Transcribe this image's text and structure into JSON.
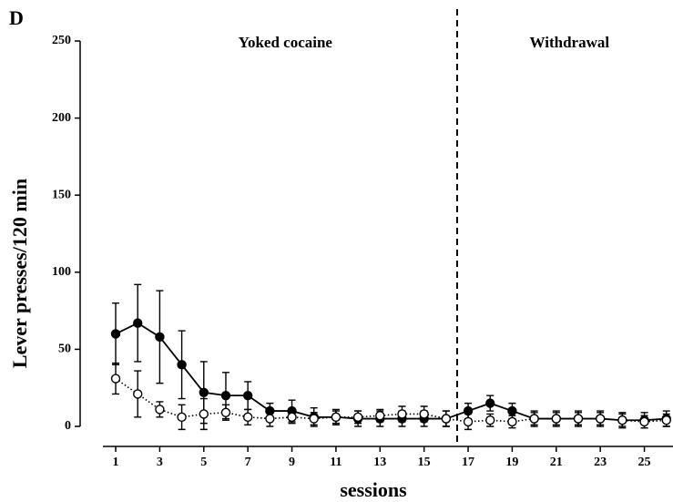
{
  "chart_data": {
    "type": "line",
    "panel": "D",
    "xlabel": "sessions",
    "ylabel": "Lever presses/120 min",
    "annotations": [
      {
        "text": "Yoked cocaine",
        "x": 8.7
      },
      {
        "text": "Withdrawal",
        "x": 21.6
      }
    ],
    "divider_x": 16.5,
    "x": [
      1,
      2,
      3,
      4,
      5,
      6,
      7,
      8,
      9,
      10,
      11,
      12,
      13,
      14,
      15,
      16,
      17,
      18,
      19,
      20,
      21,
      22,
      23,
      24,
      25,
      26
    ],
    "series": [
      {
        "color": "#000000",
        "marker": "filled",
        "line": "solid",
        "values": [
          60,
          67,
          58,
          40,
          22,
          20,
          20,
          10,
          10,
          6,
          6,
          5,
          5,
          5,
          5,
          5,
          10,
          15,
          10,
          5,
          5,
          5,
          5,
          4,
          4,
          5
        ],
        "errors": [
          20,
          25,
          30,
          22,
          20,
          15,
          9,
          5,
          7,
          6,
          5,
          5,
          5,
          5,
          5,
          5,
          5,
          5,
          5,
          5,
          5,
          5,
          5,
          5,
          5,
          5
        ]
      },
      {
        "color": "#000000",
        "marker": "open",
        "line": "dotted",
        "values": [
          31,
          21,
          11,
          6,
          8,
          9,
          6,
          5,
          6,
          5,
          6,
          6,
          7,
          8,
          8,
          5,
          3,
          4,
          3,
          5,
          5,
          5,
          5,
          4,
          3,
          4
        ],
        "errors": [
          10,
          15,
          5,
          8,
          10,
          5,
          5,
          5,
          4,
          4,
          4,
          4,
          4,
          5,
          5,
          5,
          5,
          4,
          4,
          4,
          4,
          4,
          4,
          4,
          4,
          4
        ]
      }
    ],
    "xlim": [
      0.42,
      26.3
    ],
    "xticks": [
      1,
      3,
      5,
      7,
      9,
      11,
      13,
      15,
      17,
      19,
      21,
      23,
      25
    ],
    "ylim": [
      0,
      250
    ],
    "yticks": [
      0,
      50,
      100,
      150,
      200,
      250
    ]
  }
}
